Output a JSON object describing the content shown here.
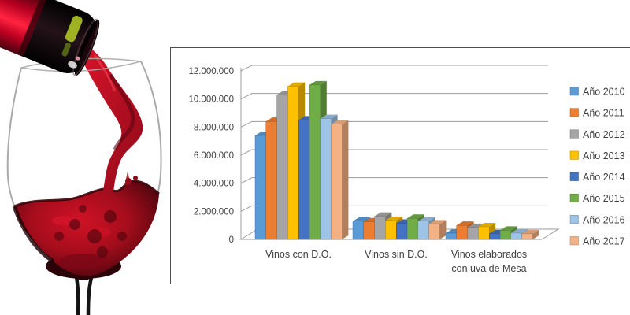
{
  "page": {
    "background": "#FFFFFF"
  },
  "photo": {
    "name": "red-wine-pour",
    "description": "Red wine being poured from a dark bottle with red foil into a large wine glass, splashing into the wine at the bottom of the bowl",
    "colors": {
      "wine_bright": "#D01226",
      "wine_mid": "#A50D1C",
      "wine_dark": "#3A0309",
      "foil_red": "#E8052A",
      "bottle_black": "#0A0608",
      "glint_green": "#AEC425",
      "glass_gray": "#9B9B9B"
    }
  },
  "chart_data": {
    "type": "bar",
    "style": "3d-clustered-column",
    "title": "",
    "categories": [
      "Vinos con D.O.",
      "Vinos sin D.O.",
      "Vinos elaborados con uva de Mesa"
    ],
    "category_label_lines": [
      [
        "Vinos con D.O."
      ],
      [
        "Vinos sin D.O."
      ],
      [
        "Vinos elaborados",
        "con uva de Mesa"
      ]
    ],
    "series": [
      {
        "name": "Año 2010",
        "color": "#5B9BD5",
        "values": [
          7400000,
          1300000,
          450000
        ]
      },
      {
        "name": "Año 2011",
        "color": "#ED7D31",
        "values": [
          8400000,
          1250000,
          1000000
        ]
      },
      {
        "name": "Año 2012",
        "color": "#A5A5A5",
        "values": [
          10300000,
          1650000,
          850000
        ]
      },
      {
        "name": "Año 2013",
        "color": "#FFC000",
        "values": [
          10900000,
          1350000,
          900000
        ]
      },
      {
        "name": "Año 2014",
        "color": "#4472C4",
        "values": [
          8500000,
          1150000,
          400000
        ]
      },
      {
        "name": "Año 2015",
        "color": "#70AD47",
        "values": [
          11000000,
          1500000,
          650000
        ]
      },
      {
        "name": "Año 2016",
        "color": "#9DC3E6",
        "values": [
          8600000,
          1300000,
          450000
        ]
      },
      {
        "name": "Año 2017",
        "color": "#F4B183",
        "values": [
          8200000,
          1100000,
          400000
        ]
      }
    ],
    "ylim": [
      0,
      12000000
    ],
    "ytick_step": 2000000,
    "ytick_labels": [
      "0",
      "2.000.000",
      "4.000.000",
      "6.000.000",
      "8.000.000",
      "10.000.000",
      "12.000.000"
    ],
    "grid": true,
    "legend_position": "right",
    "plot_bg": "#FFFFFF",
    "border_color": "#4D4D4D",
    "grid_color": "#9C9C9C",
    "text_color": "#404040"
  }
}
